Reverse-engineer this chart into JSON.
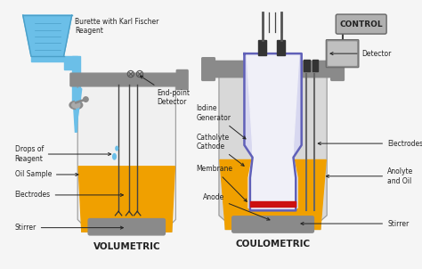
{
  "bg_color": "#f5f5f5",
  "title_vol": "VOLUMETRIC",
  "title_coul": "COULOMETRIC",
  "label_burette": "Burette with Karl Fischer\nReagent",
  "label_endpoint": "End-point\nDetector",
  "label_drops": "Drops of\nReagent",
  "label_oil": "Oil Sample",
  "label_electrodes_vol": "Electrodes",
  "label_stirrer_vol": "Stirrer",
  "label_iodine": "Iodine\nGenerator",
  "label_catholyte": "Catholyte\nCathode",
  "label_membrane": "Membrane",
  "label_anode": "Anode",
  "label_electrodes_coul": "Electrodes",
  "label_anolyte": "Anolyte\nand Oil",
  "label_stirrer_coul": "Stirrer",
  "label_detector": "Detector",
  "label_control": "CONTROL",
  "color_blue_liquid": "#6bbfe8",
  "color_blue_dark": "#4a9fc8",
  "color_yellow": "#f0a000",
  "color_gray_dark": "#888888",
  "color_gray_light": "#cccccc",
  "color_gray_mid": "#999999",
  "color_gray_collar": "#8a8a8a",
  "color_purple": "#6060b8",
  "color_purple_fill": "#d8d8f0",
  "color_red": "#cc1111",
  "color_white": "#f0f0f0",
  "color_vessel_bg": "#e8e8e8",
  "color_text": "#222222",
  "color_control_bg": "#b0b0b0"
}
